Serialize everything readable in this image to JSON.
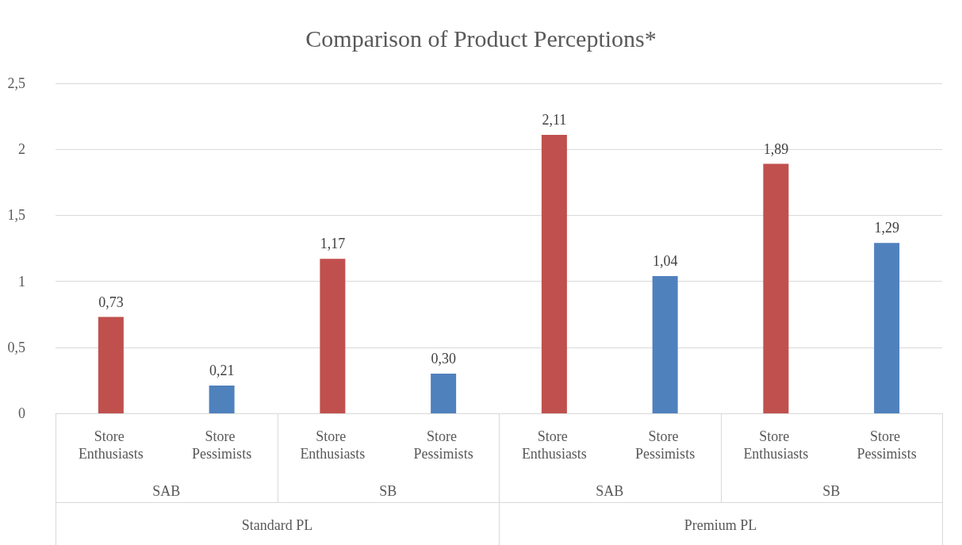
{
  "chart_data": {
    "type": "bar",
    "title": "Comparison of Product Perceptions*",
    "categories": [
      "Store Enthusiasts",
      "Store Pessimists",
      "Store Enthusiasts",
      "Store Pessimists",
      "Store Enthusiasts",
      "Store Pessimists",
      "Store Enthusiasts",
      "Store Pessimists"
    ],
    "values": [
      0.73,
      0.21,
      1.17,
      0.3,
      2.11,
      1.04,
      1.89,
      1.29
    ],
    "colors": [
      "#c0504d",
      "#4f81bd",
      "#c0504d",
      "#4f81bd",
      "#c0504d",
      "#4f81bd",
      "#c0504d",
      "#4f81bd"
    ],
    "value_labels": [
      "0,73",
      "0,21",
      "1,17",
      "0,30",
      "2,11",
      "1,04",
      "1,89",
      "1,29"
    ],
    "annotations": [
      "SAB",
      "SB",
      "SAB",
      "SB",
      "Standard PL",
      "Premium PL"
    ],
    "ylim": [
      0,
      2.5
    ],
    "yticks": [
      0,
      {
        "value": 0.5,
        "label": "0,5"
      },
      1,
      {
        "value": 1.5,
        "label": "1,5"
      },
      2,
      {
        "value": 2.5,
        "label": "2,5"
      }
    ],
    "grid": "y"
  }
}
